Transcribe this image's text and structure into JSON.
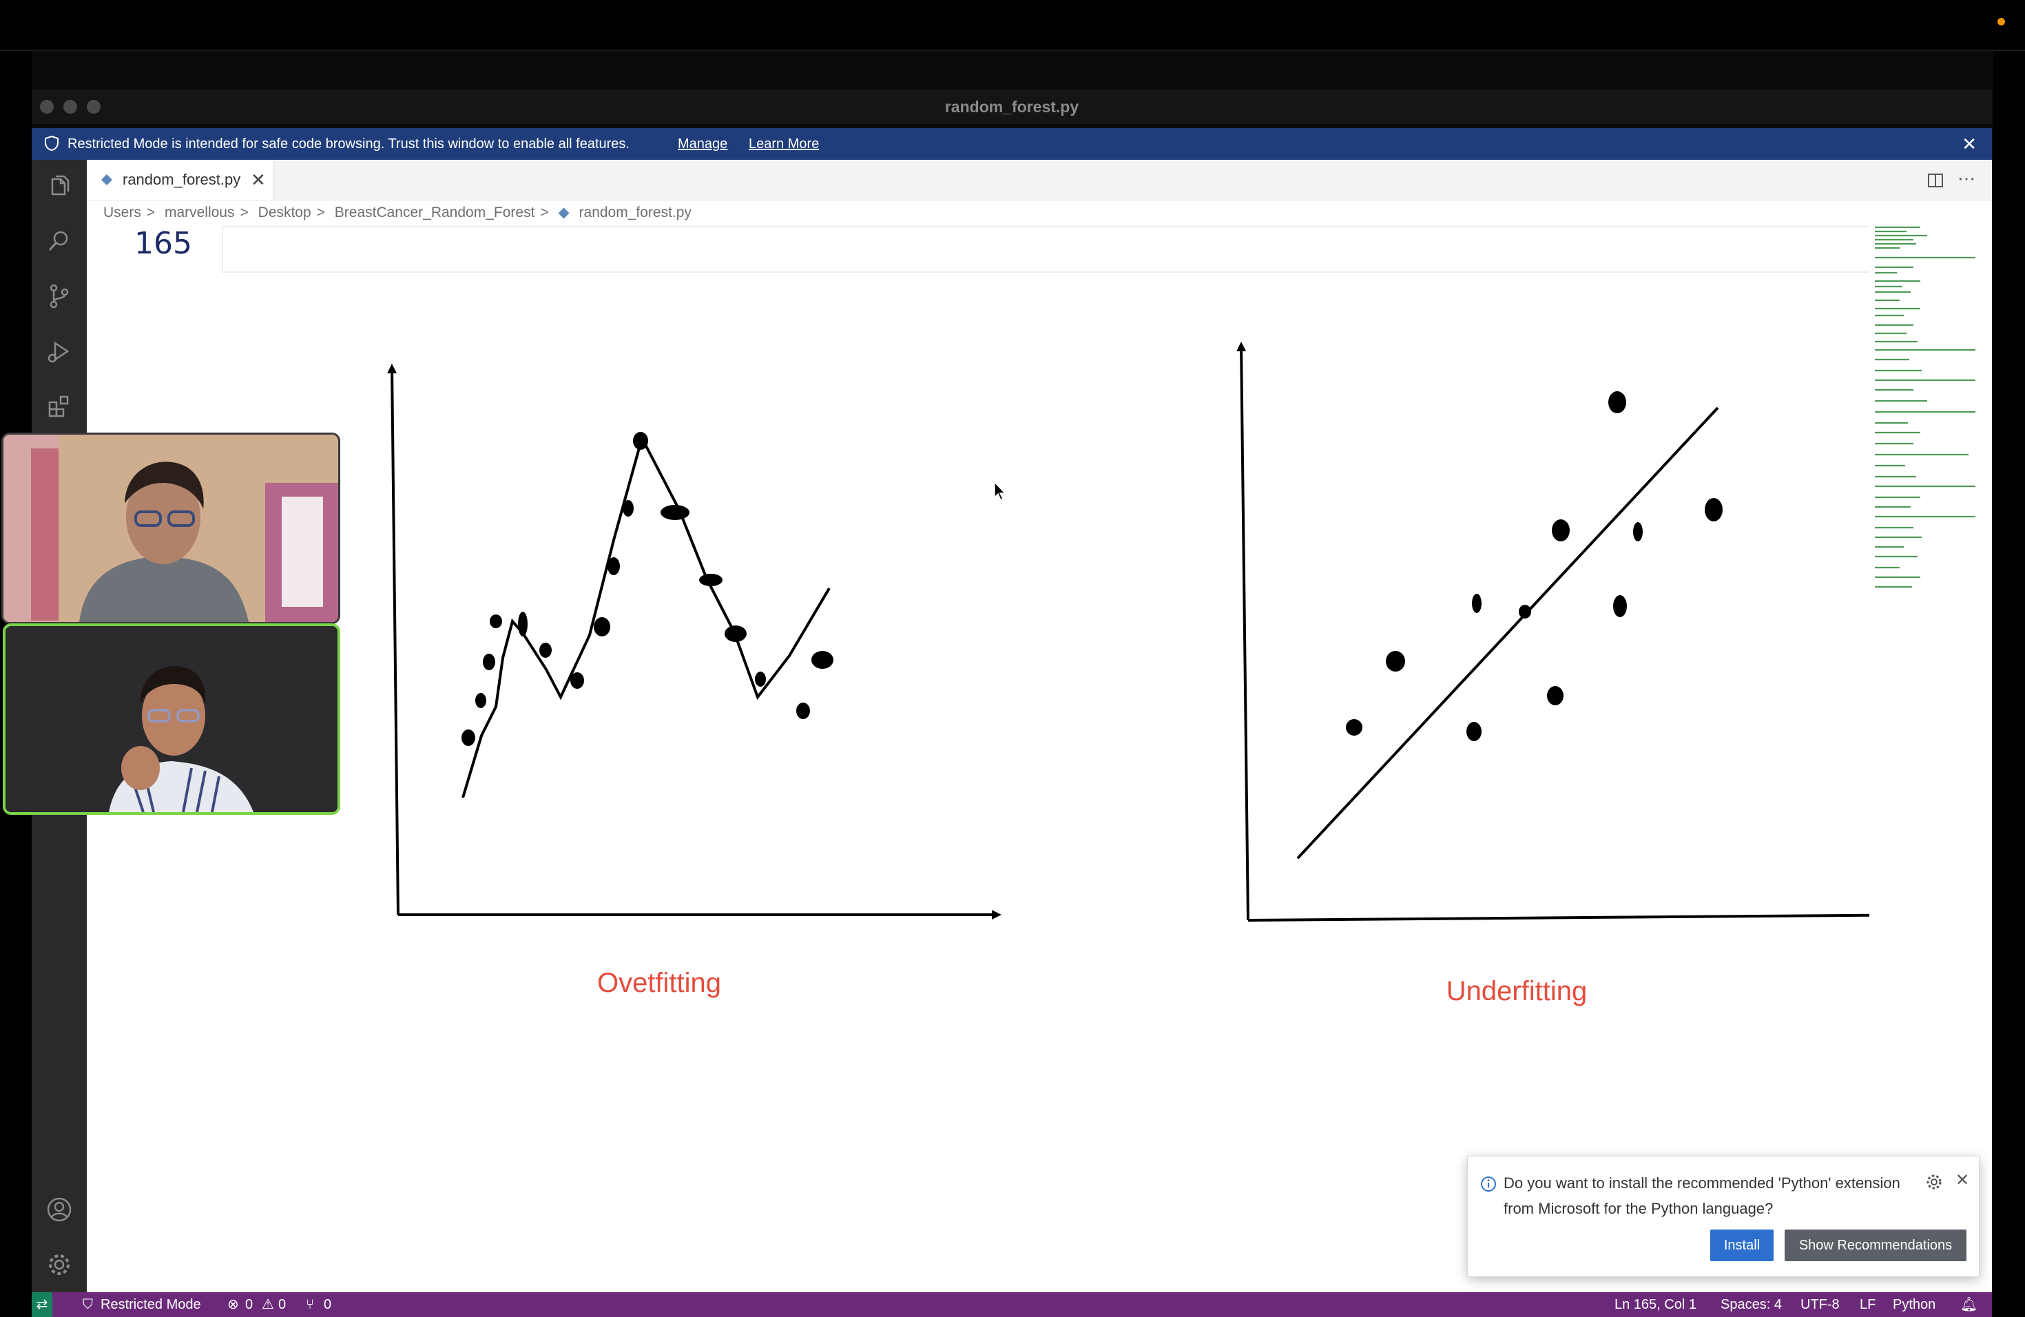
{
  "window": {
    "title": "random_forest.py"
  },
  "banner": {
    "message": "Restricted Mode is intended for safe code browsing. Trust this window to enable all features.",
    "manage_label": "Manage",
    "learn_more_label": "Learn More",
    "background": "#1f3d7a"
  },
  "tab": {
    "label": "random_forest.py"
  },
  "breadcrumb": [
    "Users",
    "marvellous",
    "Desktop",
    "BreastCancer_Random_Forest",
    "random_forest.py"
  ],
  "editor": {
    "line_number": "165"
  },
  "drawing": {
    "overfit_label": "Ovetfitting",
    "underfit_label": "Underfitting",
    "label_color": "#e44c3c"
  },
  "notification": {
    "message": "Do you want to install the recommended 'Python' extension from Microsoft for the Python language?",
    "install_label": "Install",
    "show_recommendations_label": "Show Recommendations",
    "button_color": "#2d6fce"
  },
  "statusbar": {
    "mode": "Restricted Mode",
    "errors": "0",
    "warnings": "0",
    "ports": "0",
    "position": "Ln 165, Col 1",
    "spaces": "Spaces: 4",
    "encoding": "UTF-8",
    "eol": "LF",
    "language": "Python",
    "background": "#6b2a79"
  },
  "icons": [
    "explorer-icon",
    "search-icon",
    "source-control-icon",
    "run-debug-icon",
    "extensions-icon",
    "account-icon",
    "settings-gear-icon",
    "split-editor-icon",
    "more-actions-icon",
    "python-file-icon",
    "info-icon",
    "close-icon",
    "remote-icon",
    "shield-icon",
    "bell-icon"
  ]
}
